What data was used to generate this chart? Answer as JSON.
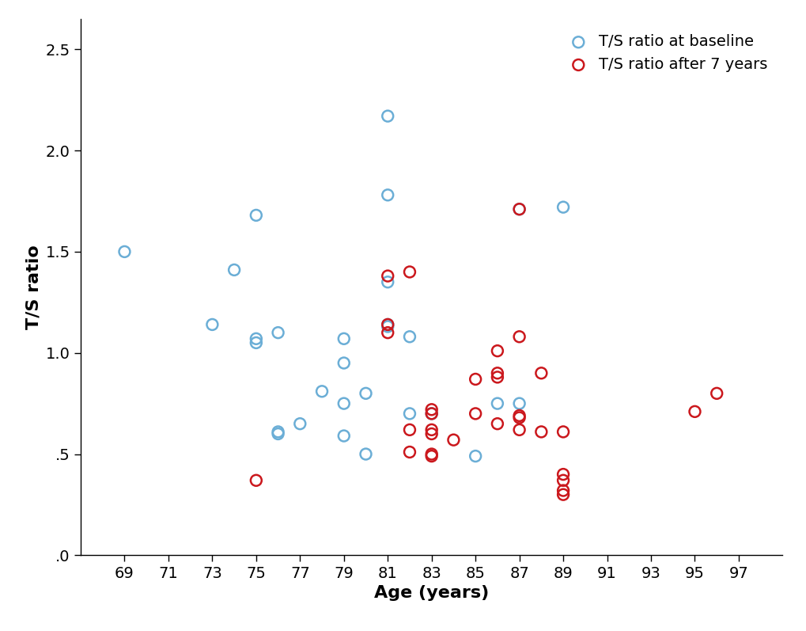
{
  "baseline_x": [
    69,
    73,
    74,
    75,
    75,
    75,
    76,
    76,
    76,
    77,
    78,
    79,
    79,
    79,
    79,
    80,
    80,
    81,
    81,
    81,
    81,
    81,
    82,
    82,
    83,
    85,
    86,
    87,
    87,
    89
  ],
  "baseline_y": [
    1.5,
    1.14,
    1.41,
    1.05,
    1.07,
    1.68,
    1.1,
    0.6,
    0.61,
    0.65,
    0.81,
    0.59,
    0.75,
    0.95,
    1.07,
    0.5,
    0.8,
    1.78,
    2.17,
    1.13,
    1.14,
    1.35,
    0.7,
    1.08,
    0.7,
    0.49,
    0.75,
    1.71,
    0.75,
    1.72
  ],
  "after7_x": [
    75,
    81,
    81,
    81,
    82,
    82,
    82,
    83,
    83,
    83,
    83,
    83,
    83,
    84,
    85,
    85,
    86,
    86,
    86,
    86,
    87,
    87,
    87,
    87,
    87,
    88,
    88,
    89,
    89,
    89,
    89,
    89,
    95,
    96
  ],
  "after7_y": [
    0.37,
    1.14,
    1.1,
    1.38,
    0.62,
    0.51,
    1.4,
    0.62,
    0.6,
    0.5,
    0.49,
    0.7,
    0.72,
    0.57,
    0.7,
    0.87,
    0.65,
    0.9,
    1.01,
    0.88,
    0.68,
    0.69,
    0.62,
    1.08,
    1.71,
    0.61,
    0.9,
    0.37,
    0.3,
    0.32,
    0.61,
    0.4,
    0.71,
    0.8
  ],
  "baseline_color": "#6baed6",
  "after7_color": "#cb181d",
  "xlabel": "Age (years)",
  "ylabel": "T/S ratio",
  "legend_baseline": "T/S ratio at baseline",
  "legend_after7": "T/S ratio after 7 years",
  "xlim": [
    67,
    99
  ],
  "ylim": [
    0.0,
    2.65
  ],
  "xticks": [
    69,
    71,
    73,
    75,
    77,
    79,
    81,
    83,
    85,
    87,
    89,
    91,
    93,
    95,
    97
  ],
  "yticks": [
    0.0,
    0.5,
    1.0,
    1.5,
    2.0,
    2.5
  ],
  "ytick_labels": [
    ".0",
    ".5",
    "1.0",
    "1.5",
    "2.0",
    "2.5"
  ],
  "marker_size": 100,
  "marker_linewidth": 1.8,
  "label_fontsize": 16,
  "tick_fontsize": 14,
  "legend_fontsize": 14
}
